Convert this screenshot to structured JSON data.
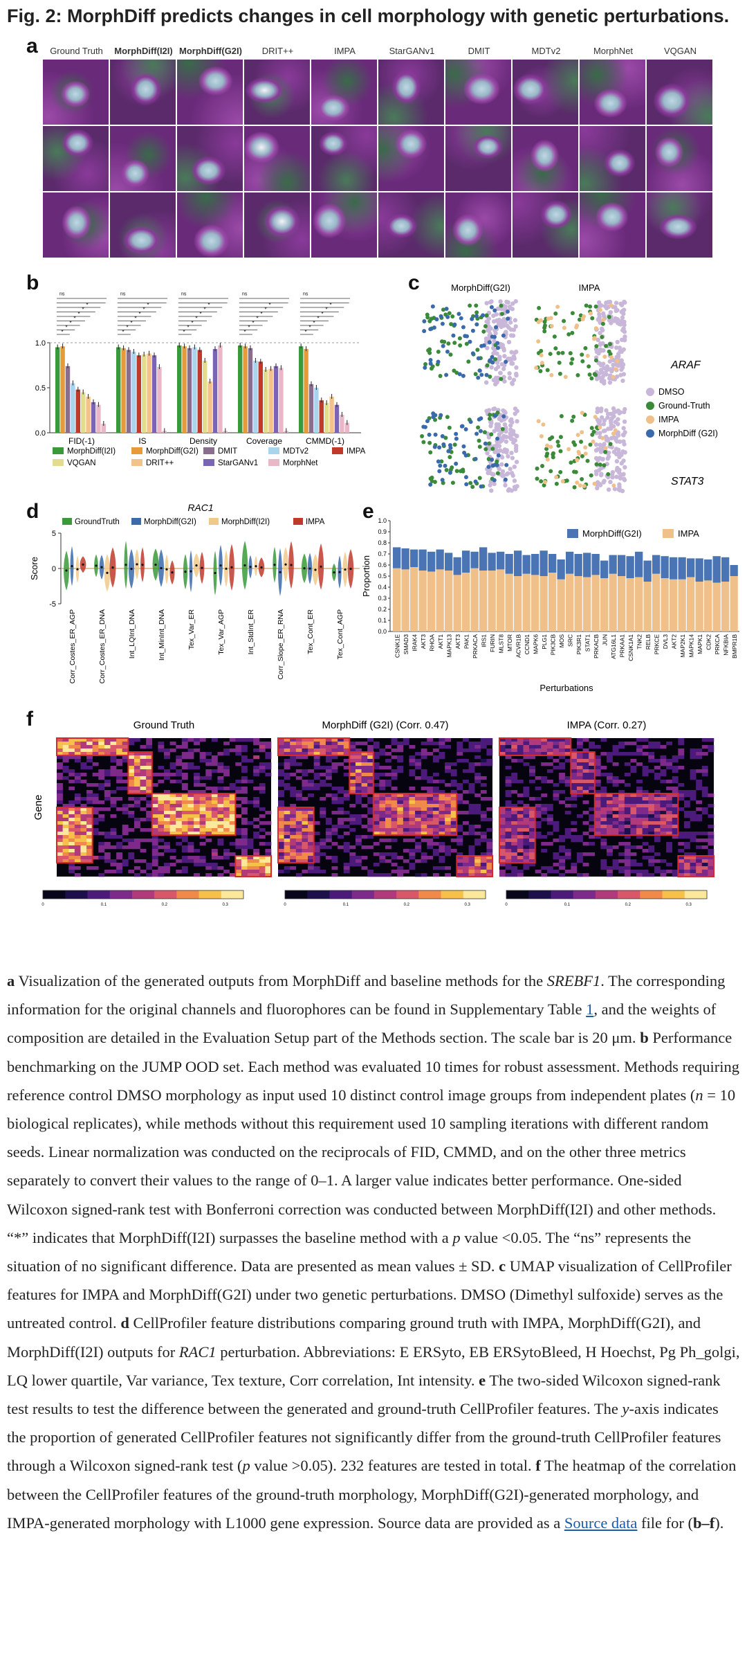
{
  "figure_title": "Fig. 2: MorphDiff predicts changes in cell morphology with genetic perturbations.",
  "panel_letters": {
    "a": "a",
    "b": "b",
    "c": "c",
    "d": "d",
    "e": "e",
    "f": "f"
  },
  "panel_a": {
    "methods": [
      "Ground Truth",
      "MorphDiff(I2I)",
      "MorphDiff(G2I)",
      "DRIT++",
      "IMPA",
      "StarGANv1",
      "DMIT",
      "MDTv2",
      "MorphNet",
      "VQGAN"
    ]
  },
  "chart_data": [
    {
      "id": "b",
      "type": "bar",
      "categories": [
        "FID(-1)",
        "IS",
        "Density",
        "Coverage",
        "CMMD(-1)"
      ],
      "ylim": [
        0,
        1.0
      ],
      "yticks": [
        "0.0",
        "0.5",
        "1.0"
      ],
      "significance_label": "ns",
      "series": [
        {
          "name": "MorphDiff(I2I)",
          "color": "#3a9a3a",
          "values": [
            0.95,
            0.95,
            0.97,
            0.97,
            0.96
          ]
        },
        {
          "name": "MorphDiff(G2I)",
          "color": "#e69a3a",
          "values": [
            0.96,
            0.94,
            0.96,
            0.96,
            0.93
          ]
        },
        {
          "name": "DMIT",
          "color": "#8a6e8e",
          "values": [
            0.74,
            0.92,
            0.94,
            0.94,
            0.54
          ]
        },
        {
          "name": "MDTv2",
          "color": "#a8d4ec",
          "values": [
            0.55,
            0.9,
            0.95,
            0.8,
            0.5
          ]
        },
        {
          "name": "IMPA",
          "color": "#c0392b",
          "values": [
            0.48,
            0.86,
            0.92,
            0.79,
            0.36
          ]
        },
        {
          "name": "VQGAN",
          "color": "#e3dc8e",
          "values": [
            0.45,
            0.87,
            0.8,
            0.7,
            0.33
          ]
        },
        {
          "name": "DRIT++",
          "color": "#f2c28a",
          "values": [
            0.4,
            0.88,
            0.57,
            0.71,
            0.4
          ]
        },
        {
          "name": "StarGANv1",
          "color": "#7a64b4",
          "values": [
            0.34,
            0.86,
            0.93,
            0.74,
            0.31
          ]
        },
        {
          "name": "MorphNet",
          "color": "#e8b8c6",
          "values": [
            0.31,
            0.73,
            0.97,
            0.72,
            0.2
          ]
        },
        {
          "name": "",
          "color": "#e8b8c6",
          "values": [
            0.1,
            0.02,
            0.02,
            0.02,
            0.11
          ]
        }
      ],
      "legend": [
        "MorphDiff(I2I)",
        "MorphDiff(G2I)",
        "DMIT",
        "MDTv2",
        "IMPA",
        "VQGAN",
        "DRIT++",
        "StarGANv1",
        "MorphNet"
      ]
    },
    {
      "id": "c",
      "type": "scatter",
      "column_titles": [
        "MorphDiff(G2I)",
        "IMPA"
      ],
      "row_labels": [
        "ARAF",
        "STAT3"
      ],
      "legend": [
        {
          "name": "DMSO",
          "color": "#c9b7d9"
        },
        {
          "name": "Ground-Truth",
          "color": "#3a8a3a"
        },
        {
          "name": "IMPA",
          "color": "#f0c08a"
        },
        {
          "name": "MorphDiff (G2I)",
          "color": "#3a6aaa"
        }
      ]
    },
    {
      "id": "d",
      "type": "violin",
      "title": "RAC1",
      "ylabel": "Score",
      "ylim": [
        -5,
        5
      ],
      "yticks": [
        "5",
        "0",
        "-5"
      ],
      "legend": [
        {
          "name": "GroundTruth",
          "color": "#3a9a3a"
        },
        {
          "name": "MorphDiff(G2I)",
          "color": "#3a6aaa"
        },
        {
          "name": "MorphDiff(I2I)",
          "color": "#f0c98a"
        },
        {
          "name": "IMPA",
          "color": "#c0392b"
        }
      ],
      "categories": [
        "Corr_Costes_ER_AGP",
        "Corr_Costes_ER_DNA",
        "Int_LQInt_DNA",
        "Int_MinInt_DNA",
        "Tex_Var_ER",
        "Tex_Var_AGP",
        "Int_StdInt_ER",
        "Corr_Slope_ER_RNA",
        "Tex_Cont_ER",
        "Tex_Cont_AGP"
      ]
    },
    {
      "id": "e",
      "type": "bar",
      "stacked": true,
      "xlabel": "Perturbations",
      "ylabel": "Proportion",
      "ylim": [
        0,
        1.0
      ],
      "yticks": [
        "0.0",
        "0.1",
        "0.2",
        "0.3",
        "0.4",
        "0.5",
        "0.6",
        "0.7",
        "0.8",
        "0.9",
        "1.0"
      ],
      "series": [
        {
          "name": "MorphDiff(G2I)",
          "color": "#4a74b4"
        },
        {
          "name": "IMPA",
          "color": "#f0c08a"
        }
      ],
      "categories": [
        "CSNK1E",
        "SMAD3",
        "IRAK4",
        "AKT3",
        "RHOA",
        "AKT1",
        "MAPK13",
        "AKT3",
        "PAK1",
        "PRKACA",
        "IRS1",
        "FURIN",
        "MLST8",
        "MTOR",
        "ACVR1B",
        "CCND1",
        "MAPK6",
        "PLG1",
        "PIK3CB",
        "MOS",
        "SRC",
        "PIK3R1",
        "STAT1",
        "PRKACB",
        "JUN",
        "ATG16L1",
        "PRKAA1",
        "CSNK1A1",
        "TNK2",
        "RELB",
        "PRKCE",
        "DVL3",
        "AKT2",
        "MAP2K1",
        "MAPK14",
        "MAPK1",
        "CDK2",
        "PRKCA",
        "NFKBIA",
        "BMPR1B"
      ],
      "impa_values": [
        0.57,
        0.56,
        0.58,
        0.55,
        0.54,
        0.56,
        0.55,
        0.51,
        0.53,
        0.57,
        0.55,
        0.55,
        0.56,
        0.52,
        0.5,
        0.52,
        0.51,
        0.5,
        0.53,
        0.47,
        0.52,
        0.5,
        0.49,
        0.51,
        0.48,
        0.52,
        0.5,
        0.48,
        0.49,
        0.45,
        0.52,
        0.48,
        0.47,
        0.47,
        0.49,
        0.45,
        0.46,
        0.44,
        0.45,
        0.5
      ],
      "g2i_values": [
        0.76,
        0.75,
        0.74,
        0.74,
        0.72,
        0.74,
        0.71,
        0.67,
        0.73,
        0.72,
        0.76,
        0.71,
        0.72,
        0.7,
        0.73,
        0.69,
        0.7,
        0.73,
        0.7,
        0.65,
        0.72,
        0.7,
        0.71,
        0.7,
        0.64,
        0.69,
        0.69,
        0.68,
        0.72,
        0.64,
        0.69,
        0.68,
        0.67,
        0.67,
        0.66,
        0.66,
        0.65,
        0.68,
        0.67,
        0.6
      ]
    },
    {
      "id": "f",
      "type": "heatmap",
      "titles": [
        "Ground Truth",
        "MorphDiff (G2I) (Corr. 0.47)",
        "IMPA (Corr. 0.27)"
      ],
      "ylabel": "Gene",
      "colorbar_ticks": [
        "0",
        "0.1",
        "0.2",
        "0.3"
      ]
    }
  ],
  "caption": {
    "segments": [
      {
        "b": "a"
      },
      {
        "t": " Visualization of the generated outputs from MorphDiff and baseline methods for the "
      },
      {
        "i": "SREBF1"
      },
      {
        "t": ". The corresponding information for the original channels and fluorophores can be found in Supplementary Table "
      },
      {
        "link": "1"
      },
      {
        "t": ", and the weights of composition are detailed in the Evaluation Setup part of the Methods section. The scale bar is 20 μm. "
      },
      {
        "b": "b"
      },
      {
        "t": " Performance benchmarking on the JUMP OOD set. Each method was evaluated 10 times for robust assessment. Methods requiring reference control DMSO morphology as input used 10 distinct control image groups from independent plates ("
      },
      {
        "i": "n"
      },
      {
        "t": " = 10 biological replicates), while methods without this requirement used 10 sampling iterations with different random seeds. Linear normalization was conducted on the reciprocals of FID, CMMD, and on the other three metrics separately to convert their values to the range of 0–1. A larger value indicates better performance. One-sided Wilcoxon signed-rank test with Bonferroni correction was conducted between MorphDiff(I2I) and other methods. “*” indicates that MorphDiff(I2I) surpasses the baseline method with a "
      },
      {
        "i": "p"
      },
      {
        "t": " value <0.05. The “ns” represents the situation of no significant difference. Data are presented as mean values ± SD. "
      },
      {
        "b": "c"
      },
      {
        "t": " UMAP visualization of CellProfiler features for IMPA and MorphDiff(G2I) under two genetic perturbations. DMSO (Dimethyl sulfoxide) serves as the untreated control. "
      },
      {
        "b": "d"
      },
      {
        "t": " CellProfiler feature distributions comparing ground truth with IMPA, MorphDiff(G2I), and MorphDiff(I2I) outputs for "
      },
      {
        "i": "RAC1"
      },
      {
        "t": " perturbation. Abbreviations: E ERSyto, EB ERSytoBleed, H Hoechst, Pg Ph_golgi, LQ lower quartile, Var variance, Tex texture, Corr correlation, Int intensity. "
      },
      {
        "b": "e"
      },
      {
        "t": " The two-sided Wilcoxon signed-rank test results to test the difference between the generated and ground-truth CellProfiler features. The "
      },
      {
        "i": "y"
      },
      {
        "t": "-axis indicates the proportion of generated CellProfiler features not significantly differ from the ground-truth CellProfiler features through a Wilcoxon signed-rank test ("
      },
      {
        "i": "p"
      },
      {
        "t": "  value >0.05). 232 features are tested in total. "
      },
      {
        "b": "f"
      },
      {
        "t": " The heatmap of the correlation between the CellProfiler features of the ground-truth morphology, MorphDiff(G2I)-generated morphology, and IMPA-generated morphology with L1000 gene expression. Source data are provided as a "
      },
      {
        "link": "Source data"
      },
      {
        "t": " file for ("
      },
      {
        "b": "b–f"
      },
      {
        "t": ")."
      }
    ]
  }
}
